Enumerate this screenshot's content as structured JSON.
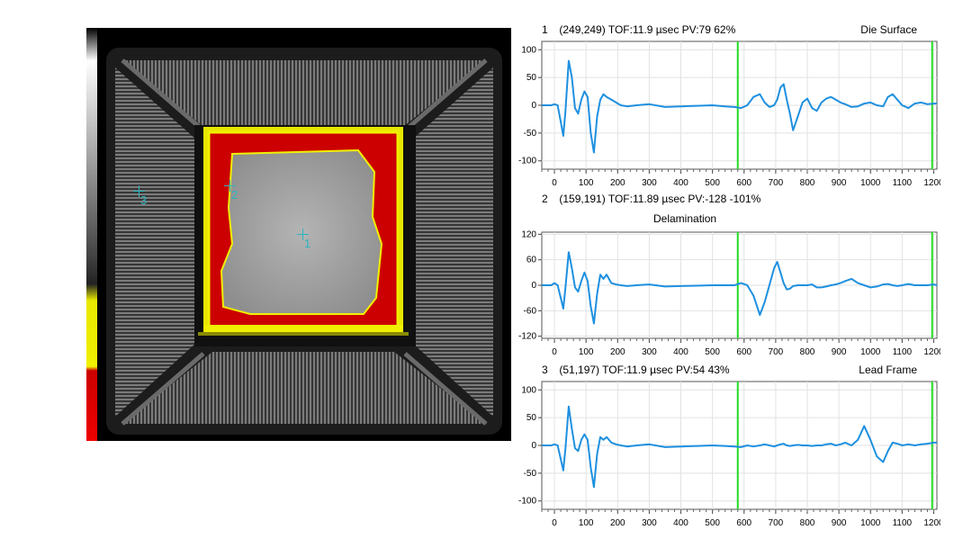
{
  "scan": {
    "markers": [
      {
        "label": "1"
      },
      {
        "label": "2"
      },
      {
        "label": "3"
      }
    ],
    "colors": {
      "background": "#000000",
      "defect_red": "#e01010",
      "edge_yellow": "#f0f000",
      "die_gray": "#a8a8a8",
      "marker_cyan": "#2bb5bd"
    }
  },
  "chart_data": [
    {
      "type": "line",
      "header": {
        "index": "1",
        "text": "(249,249) TOF:11.9 µsec  PV:79 62%"
      },
      "title": "Die Surface",
      "title_position": "top-right",
      "xlim": [
        -40,
        1210
      ],
      "ylim": [
        -115,
        115
      ],
      "xticks": [
        0,
        100,
        200,
        300,
        400,
        500,
        600,
        700,
        800,
        900,
        1000,
        1100,
        1200
      ],
      "xtick_labels": [
        "0",
        "100",
        "200",
        "300",
        "400",
        "500",
        "600",
        "700",
        "800",
        "900",
        "1000",
        "1100",
        "1200"
      ],
      "yticks": [
        100,
        50,
        0,
        -50,
        -100
      ],
      "ytick_labels": [
        "100",
        "50",
        "0",
        "-50",
        "-100"
      ],
      "grid": true,
      "gate_lines_x": [
        580,
        1195
      ],
      "series_color": "#1e90e0",
      "gate_color": "#22dd22",
      "x": [
        -40,
        -10,
        0,
        10,
        20,
        28,
        35,
        45,
        55,
        65,
        75,
        85,
        95,
        105,
        115,
        125,
        135,
        145,
        155,
        165,
        180,
        195,
        210,
        230,
        260,
        300,
        350,
        400,
        450,
        500,
        540,
        570,
        590,
        610,
        630,
        650,
        665,
        680,
        695,
        705,
        715,
        725,
        735,
        745,
        755,
        770,
        785,
        800,
        815,
        830,
        845,
        860,
        875,
        890,
        905,
        920,
        940,
        960,
        980,
        1000,
        1020,
        1040,
        1055,
        1070,
        1085,
        1100,
        1120,
        1140,
        1160,
        1180,
        1200,
        1210
      ],
      "values": [
        0,
        0,
        2,
        0,
        -30,
        -55,
        -10,
        80,
        50,
        -5,
        -15,
        10,
        25,
        15,
        -50,
        -85,
        -20,
        10,
        20,
        15,
        10,
        5,
        0,
        -2,
        0,
        2,
        -3,
        -2,
        -1,
        0,
        -2,
        -3,
        -5,
        0,
        15,
        20,
        5,
        -3,
        0,
        10,
        32,
        38,
        10,
        -15,
        -45,
        -20,
        5,
        12,
        -5,
        -10,
        5,
        12,
        15,
        10,
        5,
        2,
        -3,
        -2,
        3,
        5,
        0,
        -2,
        15,
        20,
        10,
        0,
        -5,
        3,
        5,
        2,
        3,
        3
      ]
    },
    {
      "type": "line",
      "header": {
        "index": "2",
        "text": "(159,191) TOF:11.89 µsec  PV:-128 -101%"
      },
      "title": "Delamination",
      "title_position": "top-center",
      "xlim": [
        -40,
        1210
      ],
      "ylim": [
        -125,
        125
      ],
      "xticks": [
        0,
        100,
        200,
        300,
        400,
        500,
        600,
        700,
        800,
        900,
        1000,
        1100,
        1200
      ],
      "xtick_labels": [
        "0",
        "100",
        "200",
        "300",
        "400",
        "500",
        "600",
        "700",
        "800",
        "900",
        "1000",
        "1100",
        "1200"
      ],
      "yticks": [
        120,
        60,
        0,
        -60,
        -120
      ],
      "ytick_labels": [
        "120",
        "60",
        "0",
        "-60",
        "-120"
      ],
      "grid": true,
      "gate_lines_x": [
        580,
        1195
      ],
      "series_color": "#1e90e0",
      "gate_color": "#22dd22",
      "x": [
        -40,
        -10,
        0,
        10,
        20,
        28,
        35,
        45,
        55,
        65,
        75,
        85,
        95,
        105,
        115,
        125,
        135,
        145,
        155,
        165,
        180,
        195,
        210,
        230,
        260,
        300,
        350,
        400,
        450,
        500,
        540,
        570,
        590,
        610,
        630,
        650,
        665,
        680,
        695,
        705,
        715,
        725,
        735,
        745,
        755,
        770,
        785,
        800,
        815,
        830,
        845,
        860,
        875,
        890,
        905,
        920,
        940,
        960,
        980,
        1000,
        1020,
        1040,
        1055,
        1070,
        1085,
        1100,
        1120,
        1140,
        1160,
        1180,
        1200,
        1210
      ],
      "values": [
        0,
        0,
        5,
        0,
        -30,
        -55,
        -5,
        78,
        40,
        -5,
        -15,
        10,
        30,
        10,
        -50,
        -90,
        -20,
        25,
        15,
        25,
        5,
        2,
        0,
        -2,
        0,
        2,
        -3,
        -2,
        -1,
        0,
        0,
        0,
        5,
        0,
        -25,
        -70,
        -40,
        0,
        40,
        55,
        30,
        5,
        -10,
        -8,
        -2,
        0,
        0,
        0,
        2,
        -5,
        -5,
        -3,
        0,
        2,
        5,
        10,
        15,
        5,
        0,
        -5,
        -3,
        2,
        3,
        0,
        -2,
        0,
        3,
        0,
        0,
        0,
        2,
        0
      ]
    },
    {
      "type": "line",
      "header": {
        "index": "3",
        "text": "(51,197) TOF:11.9 µsec  PV:54 43%"
      },
      "title": "Lead Frame",
      "title_position": "top-right",
      "xlim": [
        -40,
        1210
      ],
      "ylim": [
        -115,
        115
      ],
      "xticks": [
        0,
        100,
        200,
        300,
        400,
        500,
        600,
        700,
        800,
        900,
        1000,
        1100,
        1200
      ],
      "xtick_labels": [
        "0",
        "100",
        "200",
        "300",
        "400",
        "500",
        "600",
        "700",
        "800",
        "900",
        "1000",
        "1100",
        "1200"
      ],
      "yticks": [
        100,
        50,
        0,
        -50,
        -100
      ],
      "ytick_labels": [
        "100",
        "50",
        "0",
        "-50",
        "-100"
      ],
      "grid": true,
      "gate_lines_x": [
        580,
        1195
      ],
      "series_color": "#1e90e0",
      "gate_color": "#22dd22",
      "x": [
        -40,
        -10,
        0,
        10,
        20,
        28,
        35,
        45,
        55,
        65,
        75,
        85,
        95,
        105,
        115,
        125,
        135,
        145,
        155,
        165,
        180,
        195,
        210,
        230,
        260,
        300,
        350,
        400,
        450,
        500,
        540,
        570,
        590,
        610,
        630,
        650,
        665,
        680,
        695,
        705,
        715,
        725,
        735,
        745,
        755,
        770,
        785,
        800,
        815,
        830,
        845,
        860,
        875,
        890,
        905,
        920,
        940,
        960,
        980,
        1000,
        1020,
        1040,
        1055,
        1070,
        1085,
        1100,
        1120,
        1140,
        1160,
        1180,
        1200,
        1210
      ],
      "values": [
        0,
        0,
        2,
        0,
        -25,
        -45,
        -5,
        70,
        30,
        -5,
        -10,
        10,
        20,
        10,
        -40,
        -75,
        -15,
        15,
        10,
        15,
        5,
        2,
        0,
        -2,
        0,
        2,
        -3,
        -2,
        -1,
        0,
        -1,
        -2,
        -3,
        0,
        -2,
        0,
        2,
        0,
        -2,
        0,
        2,
        3,
        0,
        -1,
        0,
        1,
        0,
        0,
        -1,
        0,
        0,
        2,
        3,
        0,
        2,
        5,
        0,
        10,
        35,
        10,
        -20,
        -30,
        -10,
        5,
        3,
        0,
        2,
        0,
        2,
        3,
        5,
        5
      ]
    }
  ]
}
